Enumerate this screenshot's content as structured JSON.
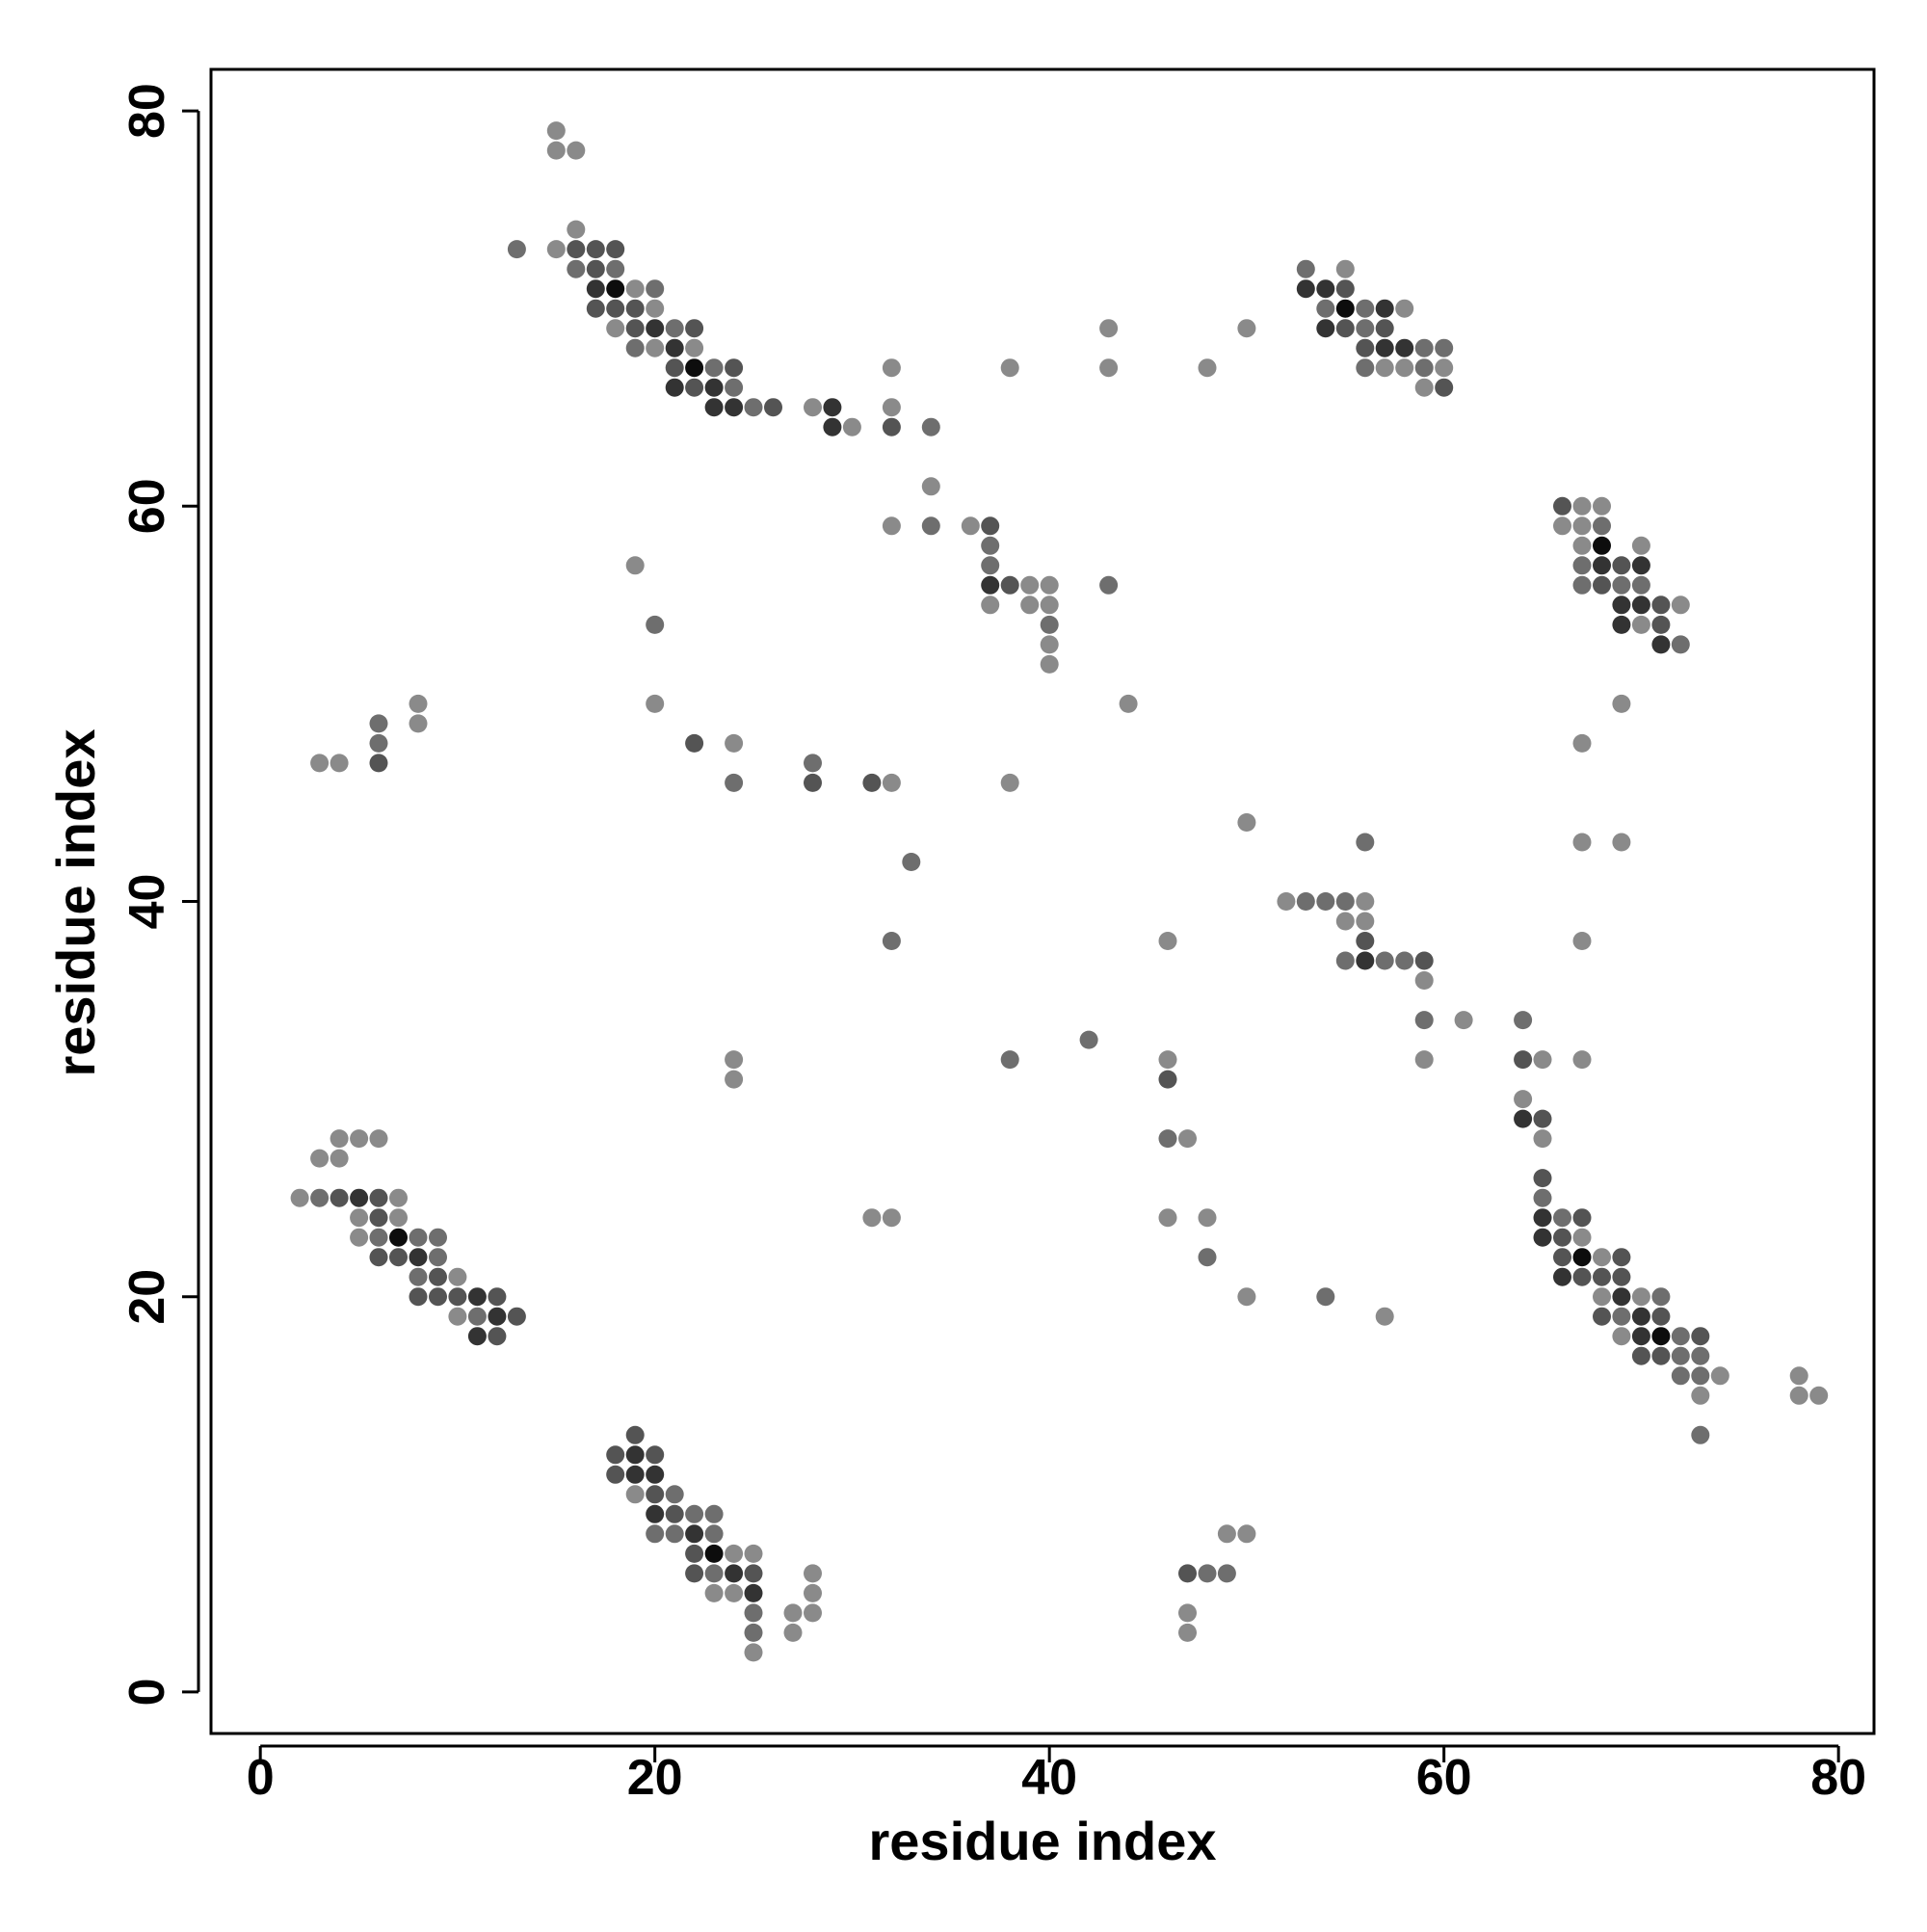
{
  "chart_data": {
    "type": "scatter",
    "title": "",
    "xlabel": "residue index",
    "ylabel": "residue index",
    "xlim": [
      -2.5,
      81.8
    ],
    "ylim": [
      -2.1,
      82.1
    ],
    "xticks": [
      0,
      20,
      40,
      60,
      80
    ],
    "yticks": [
      0,
      20,
      40,
      60,
      80
    ],
    "grid": false,
    "colors": {
      "plot_border": "#000000",
      "background": "#ffffff"
    },
    "encoding": "point shade = contact strength; level 1 lightest gray, level 5 black",
    "level_colors": [
      "#8a8a8a",
      "#6e6e6e",
      "#545454",
      "#333333",
      "#0d0d0d"
    ],
    "points": [
      [
        15,
        79,
        1
      ],
      [
        15,
        78,
        1
      ],
      [
        16,
        78,
        1
      ],
      [
        13,
        73,
        2
      ],
      [
        15,
        73,
        1
      ],
      [
        16,
        74,
        1
      ],
      [
        16,
        73,
        3
      ],
      [
        17,
        73,
        3
      ],
      [
        18,
        73,
        3
      ],
      [
        16,
        72,
        2
      ],
      [
        17,
        72,
        3
      ],
      [
        18,
        72,
        2
      ],
      [
        17,
        71,
        4
      ],
      [
        18,
        71,
        5
      ],
      [
        19,
        71,
        1
      ],
      [
        20,
        71,
        2
      ],
      [
        17,
        70,
        3
      ],
      [
        18,
        70,
        3
      ],
      [
        19,
        70,
        3
      ],
      [
        20,
        70,
        1
      ],
      [
        18,
        69,
        1
      ],
      [
        19,
        69,
        3
      ],
      [
        20,
        69,
        4
      ],
      [
        21,
        69,
        2
      ],
      [
        22,
        69,
        3
      ],
      [
        19,
        68,
        2
      ],
      [
        20,
        68,
        1
      ],
      [
        21,
        68,
        4
      ],
      [
        22,
        68,
        1
      ],
      [
        21,
        67,
        3
      ],
      [
        22,
        67,
        5
      ],
      [
        23,
        67,
        2
      ],
      [
        24,
        67,
        3
      ],
      [
        21,
        66,
        4
      ],
      [
        22,
        66,
        3
      ],
      [
        23,
        66,
        4
      ],
      [
        24,
        66,
        2
      ],
      [
        23,
        65,
        4
      ],
      [
        24,
        65,
        4
      ],
      [
        25,
        65,
        2
      ],
      [
        26,
        65,
        3
      ],
      [
        28,
        65,
        1
      ],
      [
        29,
        65,
        4
      ],
      [
        30,
        64,
        1
      ],
      [
        29,
        64,
        4
      ],
      [
        32,
        67,
        1
      ],
      [
        32,
        65,
        1
      ],
      [
        32,
        64,
        3
      ],
      [
        34,
        64,
        2
      ],
      [
        38,
        67,
        1
      ],
      [
        43,
        69,
        1
      ],
      [
        43,
        67,
        1
      ],
      [
        48,
        67,
        1
      ],
      [
        50,
        69,
        1
      ],
      [
        53,
        72,
        2
      ],
      [
        55,
        72,
        1
      ],
      [
        53,
        71,
        4
      ],
      [
        54,
        71,
        4
      ],
      [
        55,
        71,
        3
      ],
      [
        54,
        70,
        2
      ],
      [
        55,
        70,
        5
      ],
      [
        56,
        70,
        2
      ],
      [
        57,
        70,
        4
      ],
      [
        58,
        70,
        1
      ],
      [
        54,
        69,
        4
      ],
      [
        55,
        69,
        3
      ],
      [
        56,
        69,
        2
      ],
      [
        57,
        69,
        3
      ],
      [
        56,
        68,
        3
      ],
      [
        57,
        68,
        4
      ],
      [
        58,
        68,
        4
      ],
      [
        59,
        68,
        2
      ],
      [
        60,
        68,
        2
      ],
      [
        56,
        67,
        2
      ],
      [
        57,
        67,
        1
      ],
      [
        58,
        67,
        1
      ],
      [
        59,
        67,
        2
      ],
      [
        60,
        67,
        1
      ],
      [
        59,
        66,
        1
      ],
      [
        60,
        66,
        3
      ],
      [
        34,
        61,
        1
      ],
      [
        32,
        59,
        1
      ],
      [
        34,
        59,
        2
      ],
      [
        36,
        59,
        1
      ],
      [
        37,
        59,
        3
      ],
      [
        37,
        58,
        2
      ],
      [
        37,
        57,
        2
      ],
      [
        37,
        56,
        4
      ],
      [
        38,
        56,
        3
      ],
      [
        39,
        56,
        1
      ],
      [
        40,
        56,
        1
      ],
      [
        43,
        56,
        2
      ],
      [
        37,
        55,
        1
      ],
      [
        39,
        55,
        1
      ],
      [
        40,
        55,
        1
      ],
      [
        40,
        54,
        2
      ],
      [
        40,
        53,
        1
      ],
      [
        40,
        52,
        1
      ],
      [
        44,
        50,
        1
      ],
      [
        19,
        57,
        1
      ],
      [
        20,
        54,
        2
      ],
      [
        20,
        50,
        1
      ],
      [
        66,
        60,
        3
      ],
      [
        67,
        60,
        1
      ],
      [
        68,
        60,
        1
      ],
      [
        66,
        59,
        1
      ],
      [
        67,
        59,
        1
      ],
      [
        68,
        59,
        2
      ],
      [
        67,
        58,
        1
      ],
      [
        68,
        58,
        5
      ],
      [
        70,
        58,
        1
      ],
      [
        67,
        57,
        2
      ],
      [
        68,
        57,
        4
      ],
      [
        69,
        57,
        3
      ],
      [
        70,
        57,
        4
      ],
      [
        67,
        56,
        2
      ],
      [
        68,
        56,
        3
      ],
      [
        69,
        56,
        2
      ],
      [
        70,
        56,
        2
      ],
      [
        69,
        55,
        4
      ],
      [
        70,
        55,
        4
      ],
      [
        71,
        55,
        3
      ],
      [
        72,
        55,
        1
      ],
      [
        69,
        54,
        4
      ],
      [
        70,
        54,
        1
      ],
      [
        71,
        54,
        3
      ],
      [
        71,
        53,
        4
      ],
      [
        72,
        53,
        2
      ],
      [
        69,
        50,
        1
      ],
      [
        67,
        48,
        1
      ],
      [
        67,
        43,
        1
      ],
      [
        69,
        43,
        1
      ],
      [
        67,
        38,
        1
      ],
      [
        67,
        32,
        1
      ],
      [
        3,
        47,
        1
      ],
      [
        4,
        47,
        1
      ],
      [
        6,
        49,
        2
      ],
      [
        6,
        48,
        2
      ],
      [
        6,
        47,
        3
      ],
      [
        8,
        50,
        1
      ],
      [
        8,
        49,
        1
      ],
      [
        22,
        48,
        3
      ],
      [
        24,
        48,
        1
      ],
      [
        24,
        46,
        2
      ],
      [
        28,
        47,
        2
      ],
      [
        28,
        46,
        3
      ],
      [
        31,
        46,
        3
      ],
      [
        32,
        46,
        1
      ],
      [
        38,
        46,
        1
      ],
      [
        33,
        42,
        2
      ],
      [
        32,
        38,
        2
      ],
      [
        50,
        44,
        1
      ],
      [
        56,
        43,
        2
      ],
      [
        46,
        38,
        1
      ],
      [
        52,
        40,
        1
      ],
      [
        53,
        40,
        2
      ],
      [
        54,
        40,
        2
      ],
      [
        55,
        40,
        2
      ],
      [
        56,
        40,
        1
      ],
      [
        55,
        39,
        1
      ],
      [
        56,
        39,
        1
      ],
      [
        56,
        38,
        3
      ],
      [
        55,
        37,
        2
      ],
      [
        56,
        37,
        4
      ],
      [
        57,
        37,
        2
      ],
      [
        58,
        37,
        2
      ],
      [
        59,
        37,
        3
      ],
      [
        59,
        36,
        1
      ],
      [
        59,
        34,
        2
      ],
      [
        61,
        34,
        1
      ],
      [
        59,
        32,
        1
      ],
      [
        64,
        34,
        2
      ],
      [
        64,
        32,
        3
      ],
      [
        65,
        32,
        1
      ],
      [
        38,
        32,
        2
      ],
      [
        42,
        33,
        2
      ],
      [
        46,
        32,
        1
      ],
      [
        46,
        31,
        3
      ],
      [
        24,
        32,
        1
      ],
      [
        24,
        31,
        1
      ],
      [
        64,
        30,
        1
      ],
      [
        64,
        29,
        4
      ],
      [
        65,
        29,
        3
      ],
      [
        65,
        28,
        1
      ],
      [
        46,
        28,
        2
      ],
      [
        47,
        28,
        1
      ],
      [
        65,
        26,
        3
      ],
      [
        65,
        25,
        2
      ],
      [
        65,
        24,
        4
      ],
      [
        66,
        24,
        2
      ],
      [
        67,
        24,
        3
      ],
      [
        65,
        23,
        4
      ],
      [
        66,
        23,
        3
      ],
      [
        67,
        23,
        1
      ],
      [
        66,
        22,
        3
      ],
      [
        67,
        22,
        5
      ],
      [
        68,
        22,
        1
      ],
      [
        69,
        22,
        3
      ],
      [
        66,
        21,
        4
      ],
      [
        67,
        21,
        3
      ],
      [
        68,
        21,
        3
      ],
      [
        69,
        21,
        3
      ],
      [
        68,
        20,
        1
      ],
      [
        69,
        20,
        4
      ],
      [
        70,
        20,
        1
      ],
      [
        71,
        20,
        2
      ],
      [
        68,
        19,
        3
      ],
      [
        69,
        19,
        2
      ],
      [
        70,
        19,
        4
      ],
      [
        71,
        19,
        3
      ],
      [
        69,
        18,
        1
      ],
      [
        70,
        18,
        4
      ],
      [
        71,
        18,
        5
      ],
      [
        72,
        18,
        2
      ],
      [
        73,
        18,
        3
      ],
      [
        70,
        17,
        3
      ],
      [
        71,
        17,
        3
      ],
      [
        72,
        17,
        2
      ],
      [
        73,
        17,
        2
      ],
      [
        72,
        16,
        2
      ],
      [
        73,
        16,
        2
      ],
      [
        74,
        16,
        1
      ],
      [
        73,
        15,
        1
      ],
      [
        73,
        13,
        2
      ],
      [
        78,
        16,
        1
      ],
      [
        78,
        15,
        1
      ],
      [
        79,
        15,
        1
      ],
      [
        46,
        24,
        1
      ],
      [
        48,
        24,
        1
      ],
      [
        48,
        22,
        2
      ],
      [
        50,
        20,
        1
      ],
      [
        54,
        20,
        2
      ],
      [
        57,
        19,
        1
      ],
      [
        31,
        24,
        1
      ],
      [
        32,
        24,
        1
      ],
      [
        3,
        27,
        1
      ],
      [
        4,
        27,
        1
      ],
      [
        4,
        28,
        1
      ],
      [
        5,
        28,
        1
      ],
      [
        6,
        28,
        1
      ],
      [
        2,
        25,
        1
      ],
      [
        3,
        25,
        2
      ],
      [
        4,
        25,
        3
      ],
      [
        5,
        25,
        4
      ],
      [
        6,
        25,
        3
      ],
      [
        7,
        25,
        1
      ],
      [
        5,
        24,
        1
      ],
      [
        6,
        24,
        3
      ],
      [
        7,
        24,
        1
      ],
      [
        5,
        23,
        1
      ],
      [
        6,
        23,
        2
      ],
      [
        7,
        23,
        5
      ],
      [
        8,
        23,
        2
      ],
      [
        9,
        23,
        2
      ],
      [
        6,
        22,
        3
      ],
      [
        7,
        22,
        3
      ],
      [
        8,
        22,
        4
      ],
      [
        9,
        22,
        2
      ],
      [
        8,
        21,
        2
      ],
      [
        9,
        21,
        3
      ],
      [
        10,
        21,
        1
      ],
      [
        8,
        20,
        3
      ],
      [
        9,
        20,
        3
      ],
      [
        10,
        20,
        3
      ],
      [
        11,
        20,
        4
      ],
      [
        12,
        20,
        3
      ],
      [
        10,
        19,
        1
      ],
      [
        11,
        19,
        2
      ],
      [
        12,
        19,
        4
      ],
      [
        13,
        19,
        3
      ],
      [
        11,
        18,
        4
      ],
      [
        12,
        18,
        3
      ],
      [
        19,
        13,
        3
      ],
      [
        18,
        12,
        3
      ],
      [
        19,
        12,
        4
      ],
      [
        20,
        12,
        3
      ],
      [
        18,
        11,
        3
      ],
      [
        19,
        11,
        4
      ],
      [
        20,
        11,
        4
      ],
      [
        19,
        10,
        1
      ],
      [
        20,
        10,
        3
      ],
      [
        21,
        10,
        2
      ],
      [
        20,
        9,
        4
      ],
      [
        21,
        9,
        3
      ],
      [
        22,
        9,
        2
      ],
      [
        23,
        9,
        2
      ],
      [
        20,
        8,
        2
      ],
      [
        21,
        8,
        2
      ],
      [
        22,
        8,
        4
      ],
      [
        23,
        8,
        2
      ],
      [
        22,
        7,
        3
      ],
      [
        23,
        7,
        5
      ],
      [
        24,
        7,
        1
      ],
      [
        25,
        7,
        1
      ],
      [
        22,
        6,
        3
      ],
      [
        23,
        6,
        2
      ],
      [
        24,
        6,
        4
      ],
      [
        25,
        6,
        3
      ],
      [
        23,
        5,
        1
      ],
      [
        24,
        5,
        1
      ],
      [
        25,
        5,
        4
      ],
      [
        25,
        4,
        2
      ],
      [
        25,
        3,
        2
      ],
      [
        25,
        2,
        1
      ],
      [
        27,
        4,
        1
      ],
      [
        27,
        3,
        1
      ],
      [
        28,
        6,
        1
      ],
      [
        28,
        5,
        1
      ],
      [
        28,
        4,
        1
      ],
      [
        47,
        6,
        3
      ],
      [
        48,
        6,
        2
      ],
      [
        49,
        6,
        2
      ],
      [
        49,
        8,
        1
      ],
      [
        50,
        8,
        1
      ],
      [
        47,
        4,
        1
      ],
      [
        47,
        3,
        1
      ]
    ]
  }
}
